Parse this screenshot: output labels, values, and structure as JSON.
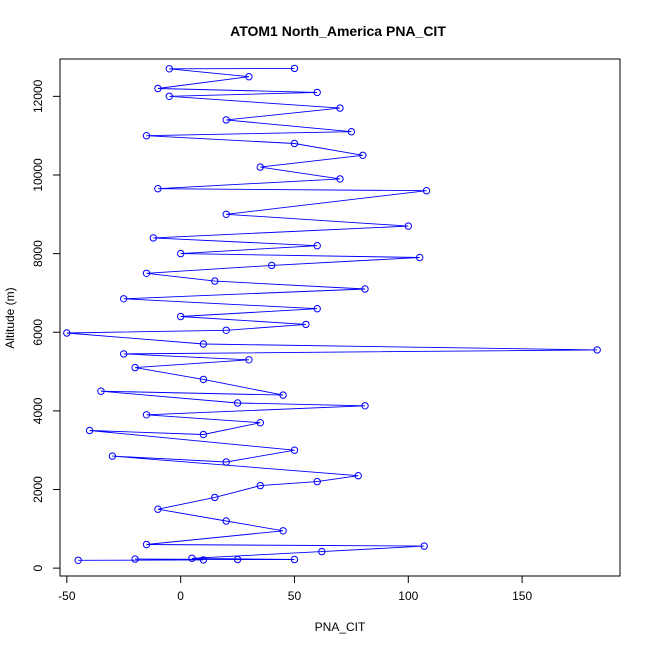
{
  "chart_data": {
    "type": "scatter",
    "title": "ATOM1 North_America PNA_CIT",
    "xlabel": "PNA_CIT",
    "ylabel": "Altitude (m)",
    "xlim": [
      -53,
      193
    ],
    "ylim": [
      -200,
      12950
    ],
    "x_ticks": [
      -50,
      0,
      50,
      100,
      150
    ],
    "y_ticks": [
      0,
      2000,
      4000,
      6000,
      8000,
      10000,
      12000
    ],
    "grid": false,
    "legend": "none",
    "series_color": "#0000ff",
    "marker": "open-circle-with-connecting-line",
    "series": [
      {
        "values": [
          {
            "x": -45,
            "y": 200
          },
          {
            "x": 10,
            "y": 210
          },
          {
            "x": -20,
            "y": 230
          },
          {
            "x": 25,
            "y": 220
          },
          {
            "x": 50,
            "y": 220
          },
          {
            "x": 5,
            "y": 250
          },
          {
            "x": 62,
            "y": 420
          },
          {
            "x": 107,
            "y": 560
          },
          {
            "x": -15,
            "y": 600
          },
          {
            "x": 45,
            "y": 950
          },
          {
            "x": 20,
            "y": 1200
          },
          {
            "x": -10,
            "y": 1500
          },
          {
            "x": 15,
            "y": 1800
          },
          {
            "x": 35,
            "y": 2100
          },
          {
            "x": 60,
            "y": 2200
          },
          {
            "x": 78,
            "y": 2350
          },
          {
            "x": -30,
            "y": 2850
          },
          {
            "x": 20,
            "y": 2700
          },
          {
            "x": 50,
            "y": 3000
          },
          {
            "x": -40,
            "y": 3500
          },
          {
            "x": 10,
            "y": 3400
          },
          {
            "x": 35,
            "y": 3700
          },
          {
            "x": -15,
            "y": 3900
          },
          {
            "x": 81,
            "y": 4130
          },
          {
            "x": 25,
            "y": 4200
          },
          {
            "x": -35,
            "y": 4500
          },
          {
            "x": 45,
            "y": 4400
          },
          {
            "x": 10,
            "y": 4800
          },
          {
            "x": -20,
            "y": 5100
          },
          {
            "x": 30,
            "y": 5300
          },
          {
            "x": -25,
            "y": 5450
          },
          {
            "x": 183,
            "y": 5550
          },
          {
            "x": 10,
            "y": 5700
          },
          {
            "x": -50,
            "y": 5980
          },
          {
            "x": 20,
            "y": 6050
          },
          {
            "x": 55,
            "y": 6200
          },
          {
            "x": 0,
            "y": 6400
          },
          {
            "x": 60,
            "y": 6600
          },
          {
            "x": -25,
            "y": 6850
          },
          {
            "x": 81,
            "y": 7100
          },
          {
            "x": 15,
            "y": 7300
          },
          {
            "x": -15,
            "y": 7500
          },
          {
            "x": 40,
            "y": 7700
          },
          {
            "x": 105,
            "y": 7900
          },
          {
            "x": 0,
            "y": 8000
          },
          {
            "x": 60,
            "y": 8200
          },
          {
            "x": -12,
            "y": 8400
          },
          {
            "x": 100,
            "y": 8700
          },
          {
            "x": 20,
            "y": 9000
          },
          {
            "x": 108,
            "y": 9600
          },
          {
            "x": -10,
            "y": 9650
          },
          {
            "x": 70,
            "y": 9900
          },
          {
            "x": 35,
            "y": 10200
          },
          {
            "x": 80,
            "y": 10500
          },
          {
            "x": 50,
            "y": 10800
          },
          {
            "x": -15,
            "y": 11000
          },
          {
            "x": 75,
            "y": 11100
          },
          {
            "x": 20,
            "y": 11400
          },
          {
            "x": 70,
            "y": 11700
          },
          {
            "x": -5,
            "y": 12000
          },
          {
            "x": 60,
            "y": 12100
          },
          {
            "x": -10,
            "y": 12200
          },
          {
            "x": 30,
            "y": 12500
          },
          {
            "x": -5,
            "y": 12700
          },
          {
            "x": 50,
            "y": 12710
          }
        ]
      }
    ]
  }
}
